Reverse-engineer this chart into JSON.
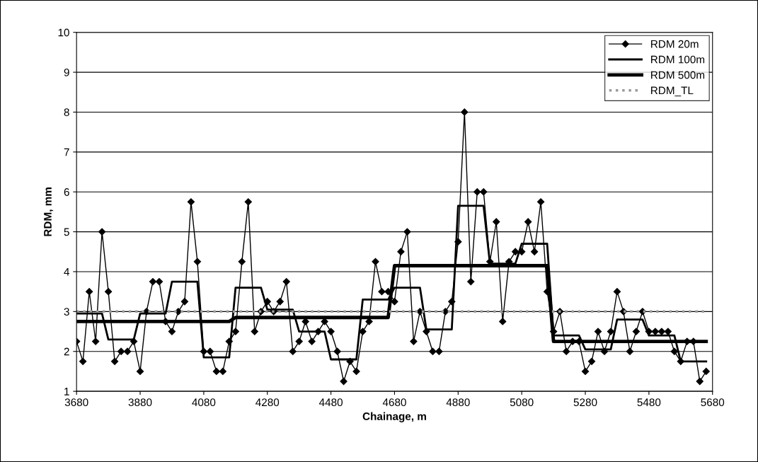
{
  "chart_data": {
    "type": "line",
    "xlabel": "Chainage, m",
    "ylabel": "RDM, mm",
    "x": [
      3680,
      3700,
      3720,
      3740,
      3760,
      3780,
      3800,
      3820,
      3840,
      3860,
      3880,
      3900,
      3920,
      3940,
      3960,
      3980,
      4000,
      4020,
      4040,
      4060,
      4080,
      4100,
      4120,
      4140,
      4160,
      4180,
      4200,
      4220,
      4240,
      4260,
      4280,
      4300,
      4320,
      4340,
      4360,
      4380,
      4400,
      4420,
      4440,
      4460,
      4480,
      4500,
      4520,
      4540,
      4560,
      4580,
      4600,
      4620,
      4640,
      4660,
      4680,
      4700,
      4720,
      4740,
      4760,
      4780,
      4800,
      4820,
      4840,
      4860,
      4880,
      4900,
      4920,
      4940,
      4960,
      4980,
      5000,
      5020,
      5040,
      5060,
      5080,
      5100,
      5120,
      5140,
      5160,
      5180,
      5200,
      5220,
      5240,
      5260,
      5280,
      5300,
      5320,
      5340,
      5360,
      5380,
      5400,
      5420,
      5440,
      5460,
      5480,
      5500,
      5520,
      5540,
      5560,
      5580,
      5600,
      5620,
      5640,
      5660
    ],
    "series": [
      {
        "name": "RDM 20m",
        "color": "#000000",
        "marker": "diamond",
        "line_style": "solid",
        "values": [
          2.25,
          1.75,
          3.5,
          2.25,
          5.0,
          3.5,
          1.75,
          2.0,
          2.0,
          2.25,
          1.5,
          3.0,
          3.75,
          3.75,
          2.75,
          2.5,
          3.0,
          3.25,
          5.75,
          4.25,
          2.0,
          2.0,
          1.5,
          1.5,
          2.25,
          2.5,
          4.25,
          5.75,
          2.5,
          3.0,
          3.25,
          3.0,
          3.25,
          3.75,
          2.0,
          2.25,
          2.75,
          2.25,
          2.5,
          2.75,
          2.5,
          2.0,
          1.25,
          1.75,
          1.5,
          2.5,
          2.75,
          4.25,
          3.5,
          3.5,
          3.25,
          4.5,
          5.0,
          2.25,
          3.0,
          2.5,
          2.0,
          2.0,
          3.0,
          3.25,
          4.75,
          8.0,
          3.75,
          6.0,
          6.0,
          4.25,
          5.25,
          2.75,
          4.25,
          4.5,
          4.5,
          5.25,
          4.5,
          5.75,
          3.5,
          2.5,
          3.0,
          2.0,
          2.25,
          2.25,
          1.5,
          1.75,
          2.5,
          2.0,
          2.5,
          3.5,
          3.0,
          2.0,
          2.5,
          3.0,
          2.5,
          2.5,
          2.5,
          2.5,
          2.0,
          1.75,
          2.25,
          2.25,
          1.25,
          1.5
        ]
      },
      {
        "name": "RDM 100m",
        "color": "#000000",
        "marker": "none",
        "line_style": "solid",
        "values": [
          2.95,
          2.95,
          2.95,
          2.95,
          2.95,
          2.3,
          2.3,
          2.3,
          2.3,
          2.3,
          2.95,
          2.95,
          2.95,
          2.95,
          2.95,
          3.75,
          3.75,
          3.75,
          3.75,
          3.75,
          1.85,
          1.85,
          1.85,
          1.85,
          1.85,
          3.6,
          3.6,
          3.6,
          3.6,
          3.6,
          3.05,
          3.05,
          3.05,
          3.05,
          3.05,
          2.5,
          2.5,
          2.5,
          2.5,
          2.5,
          1.8,
          1.8,
          1.8,
          1.8,
          1.8,
          3.3,
          3.3,
          3.3,
          3.3,
          3.3,
          3.6,
          3.6,
          3.6,
          3.6,
          3.6,
          2.55,
          2.55,
          2.55,
          2.55,
          2.55,
          5.65,
          5.65,
          5.65,
          5.65,
          5.65,
          4.2,
          4.2,
          4.2,
          4.2,
          4.2,
          4.7,
          4.7,
          4.7,
          4.7,
          4.7,
          2.4,
          2.4,
          2.4,
          2.4,
          2.4,
          2.05,
          2.05,
          2.05,
          2.05,
          2.05,
          2.8,
          2.8,
          2.8,
          2.8,
          2.8,
          2.4,
          2.4,
          2.4,
          2.4,
          2.4,
          1.75,
          1.75,
          1.75,
          1.75,
          1.75
        ]
      },
      {
        "name": "RDM 500m",
        "color": "#000000",
        "marker": "none",
        "line_style": "solid",
        "values": [
          2.75,
          2.75,
          2.75,
          2.75,
          2.75,
          2.75,
          2.75,
          2.75,
          2.75,
          2.75,
          2.75,
          2.75,
          2.75,
          2.75,
          2.75,
          2.75,
          2.75,
          2.75,
          2.75,
          2.75,
          2.75,
          2.75,
          2.75,
          2.75,
          2.75,
          2.85,
          2.85,
          2.85,
          2.85,
          2.85,
          2.85,
          2.85,
          2.85,
          2.85,
          2.85,
          2.85,
          2.85,
          2.85,
          2.85,
          2.85,
          2.85,
          2.85,
          2.85,
          2.85,
          2.85,
          2.85,
          2.85,
          2.85,
          2.85,
          2.85,
          4.15,
          4.15,
          4.15,
          4.15,
          4.15,
          4.15,
          4.15,
          4.15,
          4.15,
          4.15,
          4.15,
          4.15,
          4.15,
          4.15,
          4.15,
          4.15,
          4.15,
          4.15,
          4.15,
          4.15,
          4.15,
          4.15,
          4.15,
          4.15,
          4.15,
          2.25,
          2.25,
          2.25,
          2.25,
          2.25,
          2.25,
          2.25,
          2.25,
          2.25,
          2.25,
          2.25,
          2.25,
          2.25,
          2.25,
          2.25,
          2.25,
          2.25,
          2.25,
          2.25,
          2.25,
          2.25,
          2.25,
          2.25,
          2.25,
          2.25
        ]
      },
      {
        "name": "RDM_TL",
        "color": "#9a9a9a",
        "marker": "none",
        "line_style": "dotted",
        "x": [
          3680,
          5660
        ],
        "values": [
          3,
          3
        ]
      }
    ],
    "xlim": [
      3680,
      5680
    ],
    "xticks": [
      3680,
      3880,
      4080,
      4280,
      4480,
      4680,
      4880,
      5080,
      5280,
      5480,
      5680
    ],
    "ylim": [
      1,
      10
    ],
    "yticks": [
      1,
      2,
      3,
      4,
      5,
      6,
      7,
      8,
      9,
      10
    ],
    "grid": "y",
    "legend": "top right"
  }
}
